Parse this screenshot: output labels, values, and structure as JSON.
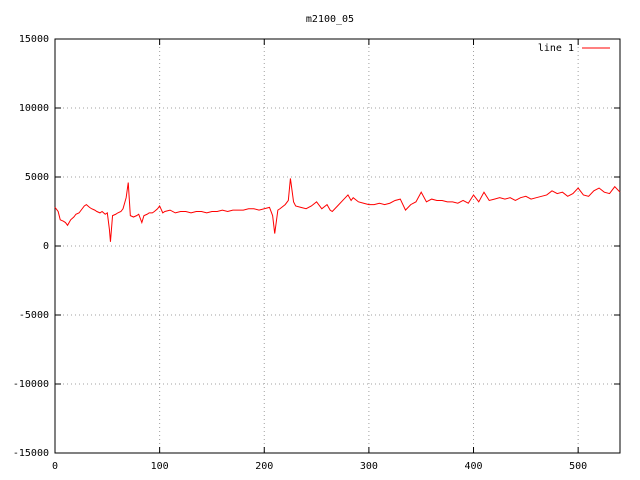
{
  "chart_data": {
    "type": "line",
    "title": "m2100_05",
    "x": [
      0,
      3,
      5,
      8,
      10,
      12,
      15,
      18,
      20,
      23,
      25,
      28,
      30,
      33,
      35,
      38,
      40,
      43,
      45,
      48,
      50,
      52,
      53,
      55,
      58,
      60,
      63,
      65,
      68,
      70,
      72,
      75,
      78,
      80,
      83,
      85,
      88,
      90,
      93,
      95,
      98,
      100,
      103,
      105,
      110,
      115,
      120,
      125,
      130,
      135,
      140,
      145,
      150,
      155,
      160,
      165,
      170,
      175,
      180,
      185,
      190,
      195,
      200,
      205,
      208,
      210,
      213,
      215,
      220,
      223,
      225,
      228,
      230,
      235,
      240,
      245,
      250,
      255,
      260,
      263,
      265,
      270,
      275,
      280,
      283,
      285,
      290,
      295,
      300,
      305,
      310,
      315,
      320,
      325,
      330,
      335,
      340,
      345,
      350,
      355,
      360,
      365,
      370,
      375,
      380,
      385,
      390,
      395,
      400,
      405,
      410,
      415,
      420,
      425,
      430,
      435,
      440,
      445,
      450,
      455,
      460,
      465,
      470,
      475,
      480,
      485,
      490,
      495,
      500,
      505,
      510,
      515,
      520,
      525,
      530,
      535,
      540
    ],
    "series": [
      {
        "name": "line 1",
        "color": "#ff0000",
        "values": [
          2800,
          2500,
          1900,
          1800,
          1700,
          1500,
          1900,
          2100,
          2300,
          2400,
          2600,
          2900,
          3000,
          2800,
          2700,
          2600,
          2500,
          2400,
          2500,
          2300,
          2400,
          1200,
          300,
          2200,
          2300,
          2400,
          2500,
          2700,
          3500,
          4600,
          2200,
          2100,
          2200,
          2300,
          1700,
          2200,
          2300,
          2400,
          2400,
          2500,
          2700,
          2900,
          2400,
          2500,
          2600,
          2400,
          2500,
          2500,
          2400,
          2500,
          2500,
          2400,
          2500,
          2500,
          2600,
          2500,
          2600,
          2600,
          2600,
          2700,
          2700,
          2600,
          2700,
          2800,
          2200,
          900,
          2600,
          2700,
          3000,
          3300,
          4900,
          3200,
          2900,
          2800,
          2700,
          2900,
          3200,
          2700,
          3000,
          2600,
          2500,
          2900,
          3300,
          3700,
          3300,
          3500,
          3200,
          3100,
          3000,
          3000,
          3100,
          3000,
          3100,
          3300,
          3400,
          2600,
          3000,
          3200,
          3900,
          3200,
          3400,
          3300,
          3300,
          3200,
          3200,
          3100,
          3300,
          3100,
          3700,
          3200,
          3900,
          3300,
          3400,
          3500,
          3400,
          3500,
          3300,
          3500,
          3600,
          3400,
          3500,
          3600,
          3700,
          4000,
          3800,
          3900,
          3600,
          3800,
          4200,
          3700,
          3600,
          4000,
          4200,
          3900,
          3800,
          4300,
          3900
        ]
      }
    ],
    "xlim": [
      0,
      540
    ],
    "ylim": [
      -15000,
      15000
    ],
    "xticks": [
      0,
      100,
      200,
      300,
      400,
      500
    ],
    "yticks": [
      -15000,
      -10000,
      -5000,
      0,
      5000,
      10000,
      15000
    ],
    "grid": true,
    "legend": "top-right"
  }
}
